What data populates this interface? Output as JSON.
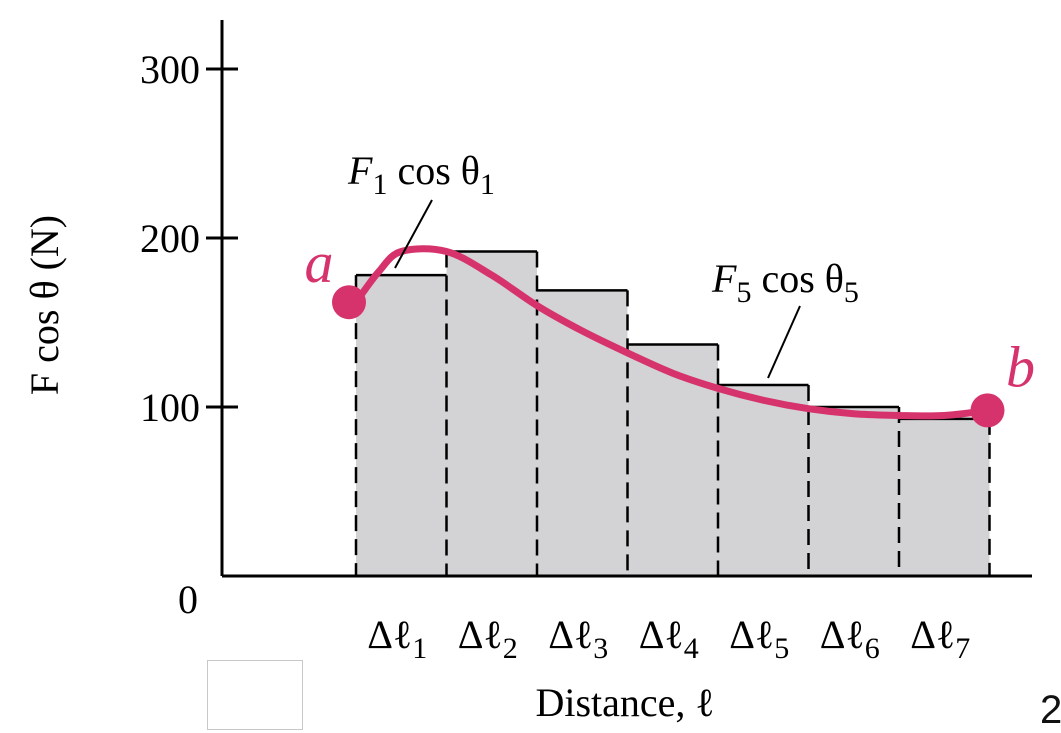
{
  "chart_data": {
    "type": "bar",
    "title": "",
    "xlabel": "Distance, ℓ",
    "ylabel": "F cos θ (N)",
    "ylim": [
      0,
      300
    ],
    "yticks": [
      0,
      100,
      200,
      300
    ],
    "categories": [
      "Δℓ1",
      "Δℓ2",
      "Δℓ3",
      "Δℓ4",
      "Δℓ5",
      "Δℓ6",
      "Δℓ7"
    ],
    "category_labels": [
      {
        "main": "Δℓ",
        "sub": "1"
      },
      {
        "main": "Δℓ",
        "sub": "2"
      },
      {
        "main": "Δℓ",
        "sub": "3"
      },
      {
        "main": "Δℓ",
        "sub": "4"
      },
      {
        "main": "Δℓ",
        "sub": "5"
      },
      {
        "main": "Δℓ",
        "sub": "6"
      },
      {
        "main": "Δℓ",
        "sub": "7"
      }
    ],
    "values": [
      178,
      192,
      169,
      137,
      113,
      100,
      93
    ],
    "curve": {
      "x": [
        0,
        0.25,
        0.5,
        1,
        1.5,
        2,
        2.5,
        3,
        3.5,
        4,
        4.5,
        5,
        5.5,
        6,
        6.5,
        7
      ],
      "y": [
        162,
        180,
        192,
        192,
        178,
        160,
        145,
        132,
        120,
        111,
        104,
        99,
        96,
        95,
        95,
        98
      ]
    },
    "points": [
      {
        "label": "a",
        "x": 0,
        "y": 162
      },
      {
        "label": "b",
        "x": 7,
        "y": 98
      }
    ],
    "annotations": [
      {
        "main": "F",
        "sub1": "1",
        "mid": " cos θ",
        "sub2": "1"
      },
      {
        "main": "F",
        "sub1": "5",
        "mid": " cos θ",
        "sub2": "5"
      }
    ],
    "colors": {
      "bar_fill": "#d3d3d5",
      "curve": "#d6336c",
      "axis": "#000000"
    },
    "grid": false,
    "legend": "none"
  },
  "page_number": "2"
}
